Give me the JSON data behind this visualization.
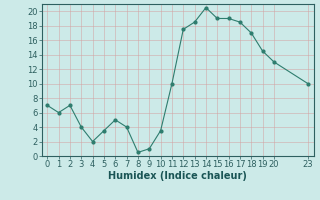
{
  "x": [
    0,
    1,
    2,
    3,
    4,
    5,
    6,
    7,
    8,
    9,
    10,
    11,
    12,
    13,
    14,
    15,
    16,
    17,
    18,
    19,
    20,
    23
  ],
  "y": [
    7,
    6,
    7,
    4,
    2,
    3.5,
    5,
    4,
    0.5,
    1,
    3.5,
    10,
    17.5,
    18.5,
    20.5,
    19,
    19,
    18.5,
    17,
    14.5,
    13,
    10
  ],
  "line_color": "#2e7d6e",
  "marker": "o",
  "marker_size": 2,
  "bg_color": "#cceae8",
  "grid_color": "#b0d4d0",
  "xlabel": "Humidex (Indice chaleur)",
  "xlim": [
    -0.5,
    23.5
  ],
  "ylim": [
    0,
    21
  ],
  "xticks": [
    0,
    1,
    2,
    3,
    4,
    5,
    6,
    7,
    8,
    9,
    10,
    11,
    12,
    13,
    14,
    15,
    16,
    17,
    18,
    19,
    20,
    23
  ],
  "yticks": [
    0,
    2,
    4,
    6,
    8,
    10,
    12,
    14,
    16,
    18,
    20
  ],
  "tick_color": "#2e6060",
  "label_color": "#1a5555",
  "spine_color": "#2e6060",
  "font_size": 6,
  "xlabel_fontsize": 7,
  "bottom_bar_color": "#2e7d6e",
  "bottom_bar_height": 0.12
}
